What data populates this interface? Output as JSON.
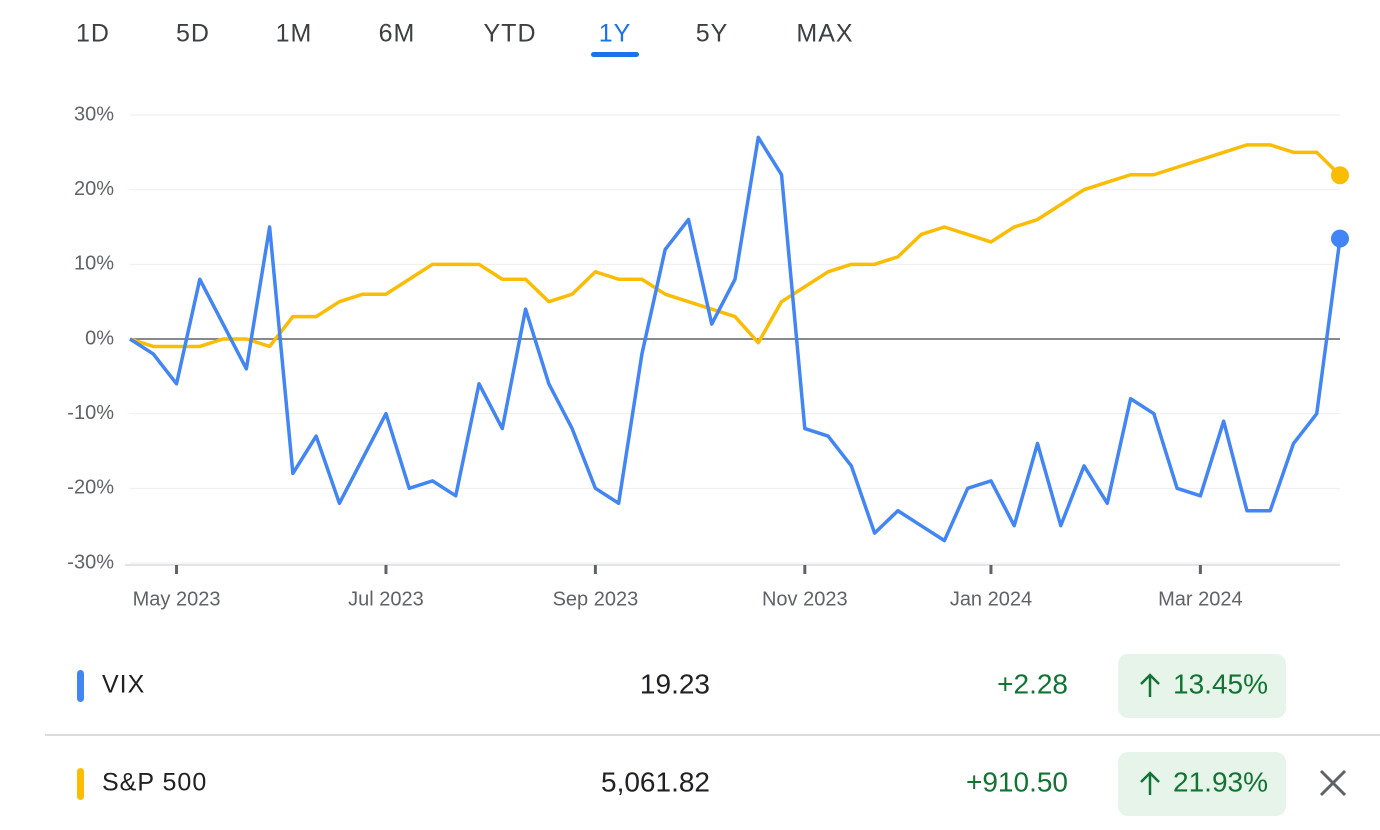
{
  "tabs": [
    "1D",
    "5D",
    "1M",
    "6M",
    "YTD",
    "1Y",
    "5Y",
    "MAX"
  ],
  "selected_tab": "1Y",
  "chart_data": {
    "type": "line",
    "categories": [
      null,
      null,
      "May 2023",
      null,
      null,
      null,
      null,
      null,
      null,
      null,
      null,
      "Jul 2023",
      null,
      null,
      null,
      null,
      null,
      null,
      null,
      null,
      "Sep 2023",
      null,
      null,
      null,
      null,
      null,
      null,
      null,
      null,
      "Nov 2023",
      null,
      null,
      null,
      null,
      null,
      null,
      null,
      "Jan 2024",
      null,
      null,
      null,
      null,
      null,
      null,
      null,
      null,
      "Mar 2024",
      null,
      null,
      null,
      null,
      null,
      null
    ],
    "series": [
      {
        "name": "VIX",
        "color": "#4285f4",
        "values": [
          0,
          -2,
          -6,
          8,
          2,
          -4,
          15,
          -18,
          -13,
          -22,
          -16,
          -10,
          -20,
          -19,
          -21,
          -6,
          -12,
          4,
          -6,
          -12,
          -20,
          -22,
          -2,
          12,
          16,
          2,
          8,
          27,
          22,
          -12,
          -13,
          -17,
          -26,
          -23,
          -25,
          -27,
          -20,
          -19,
          -25,
          -14,
          -25,
          -17,
          -22,
          -8,
          -10,
          -20,
          -21,
          -11,
          -23,
          -23,
          -14,
          -10,
          13.45
        ]
      },
      {
        "name": "S&P 500",
        "color": "#fbbc04",
        "values": [
          0,
          -1,
          -1,
          -1,
          0,
          0,
          -1,
          3,
          3,
          5,
          6,
          6,
          8,
          10,
          10,
          10,
          8,
          8,
          5,
          6,
          9,
          8,
          8,
          6,
          5,
          4,
          3,
          -0.5,
          5,
          7,
          9,
          10,
          10,
          11,
          14,
          15,
          14,
          13,
          15,
          16,
          18,
          20,
          21,
          22,
          22,
          23,
          24,
          25,
          26,
          26,
          25,
          25,
          21.93
        ]
      }
    ],
    "ylim": [
      -30,
      30
    ],
    "yticks": [
      {
        "value": 30,
        "label": "30%"
      },
      {
        "value": 20,
        "label": "20%"
      },
      {
        "value": 10,
        "label": "10%"
      },
      {
        "value": 0,
        "label": "0%"
      },
      {
        "value": -10,
        "label": "-10%"
      },
      {
        "value": -20,
        "label": "-20%"
      },
      {
        "value": -30,
        "label": "-30%"
      }
    ],
    "grid": true
  },
  "rows": [
    {
      "name": "VIX",
      "price": "19.23",
      "change": "+2.28",
      "percent": "13.45%"
    },
    {
      "name": "S&P 500",
      "price": "5,061.82",
      "change": "+910.50",
      "percent": "21.93%"
    }
  ]
}
